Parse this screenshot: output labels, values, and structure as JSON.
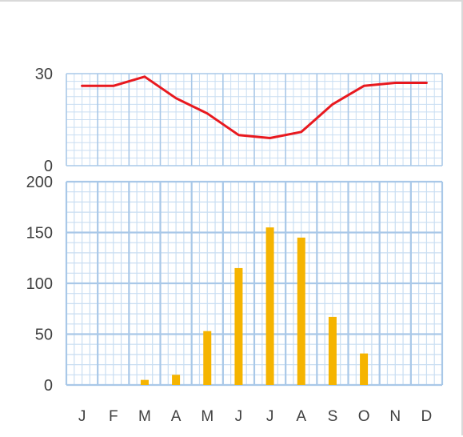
{
  "chart_data": [
    {
      "type": "line",
      "title": "",
      "xlabel": "",
      "ylabel": "",
      "categories": [
        "J",
        "F",
        "M",
        "A",
        "M",
        "J",
        "J",
        "A",
        "S",
        "O",
        "N",
        "D"
      ],
      "yticks": [
        "0",
        "30"
      ],
      "ylim": [
        0,
        30
      ],
      "grid": true,
      "series": [
        {
          "values": [
            26,
            26,
            29,
            22,
            17,
            10,
            9,
            11,
            20,
            26,
            27,
            27
          ],
          "color": "#e8191f"
        }
      ]
    },
    {
      "type": "bar",
      "title": "",
      "xlabel": "",
      "ylabel": "",
      "categories": [
        "J",
        "F",
        "M",
        "A",
        "M",
        "J",
        "J",
        "A",
        "S",
        "O",
        "N",
        "D"
      ],
      "yticks": [
        "0",
        "50",
        "100",
        "150",
        "200"
      ],
      "ylim": [
        0,
        200
      ],
      "grid": true,
      "series": [
        {
          "values": [
            0,
            0,
            5,
            10,
            53,
            115,
            155,
            145,
            67,
            31,
            0,
            0
          ],
          "color": "#f5b400"
        }
      ]
    }
  ],
  "colors": {
    "grid_major": "#a9c8e8",
    "grid_minor": "#c9def2",
    "axis_text": "#404040"
  }
}
